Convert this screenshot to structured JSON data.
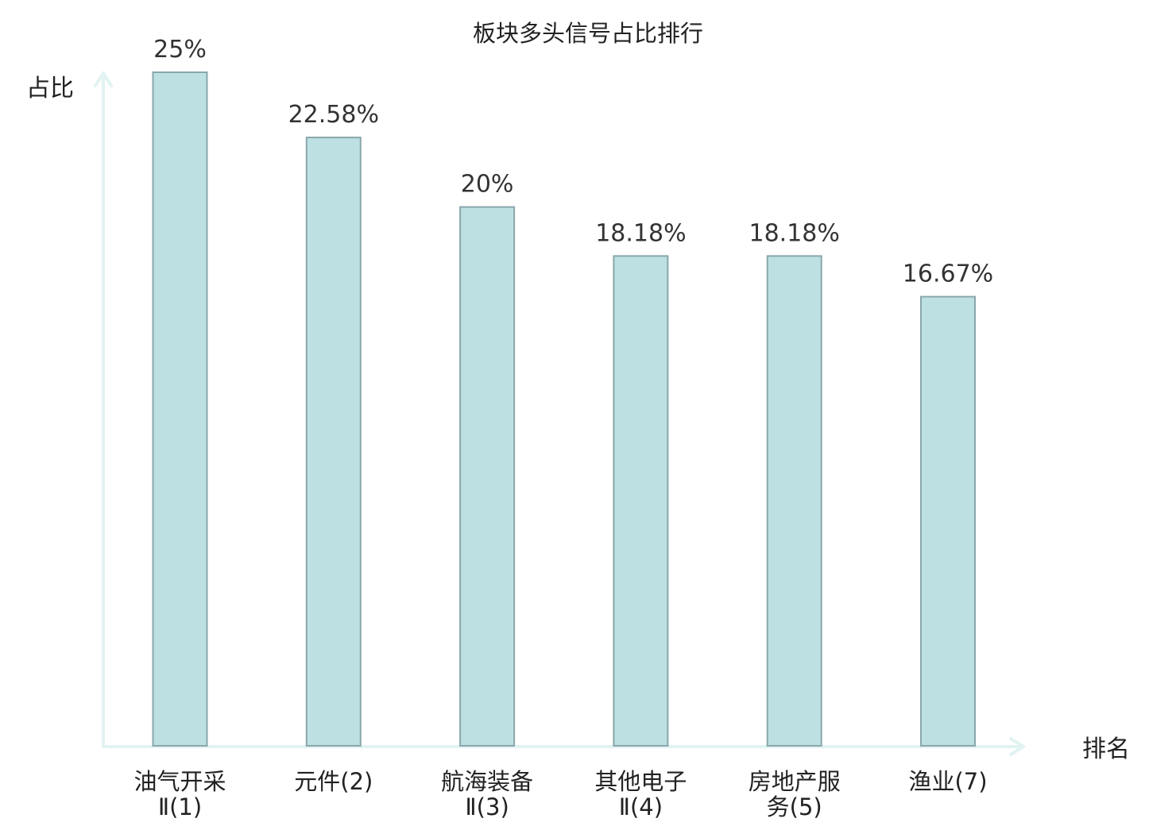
{
  "chart_data": {
    "type": "bar",
    "title": "板块多头信号占比排行",
    "ylabel": "占比",
    "xlabel": "排名",
    "categories": [
      [
        "油气开采",
        "Ⅱ(1)"
      ],
      [
        "元件(2)"
      ],
      [
        "航海装备",
        "Ⅱ(3)"
      ],
      [
        "其他电子",
        "Ⅱ(4)"
      ],
      [
        "房地产服",
        "务(5)"
      ],
      [
        "渔业(7)"
      ]
    ],
    "values": [
      25,
      22.58,
      20,
      18.18,
      18.18,
      16.67
    ],
    "value_labels": [
      "25%",
      "22.58%",
      "20%",
      "18.18%",
      "18.18%",
      "16.67%"
    ],
    "ylim": [
      0,
      25
    ],
    "grid": false,
    "colors": {
      "bar_fill": "#bde0e3",
      "bar_stroke": "#8aa7ab",
      "axis": "#e1f3f2",
      "highlight_label": "#e00000",
      "label": "#222222"
    },
    "highlight_index": 5
  }
}
